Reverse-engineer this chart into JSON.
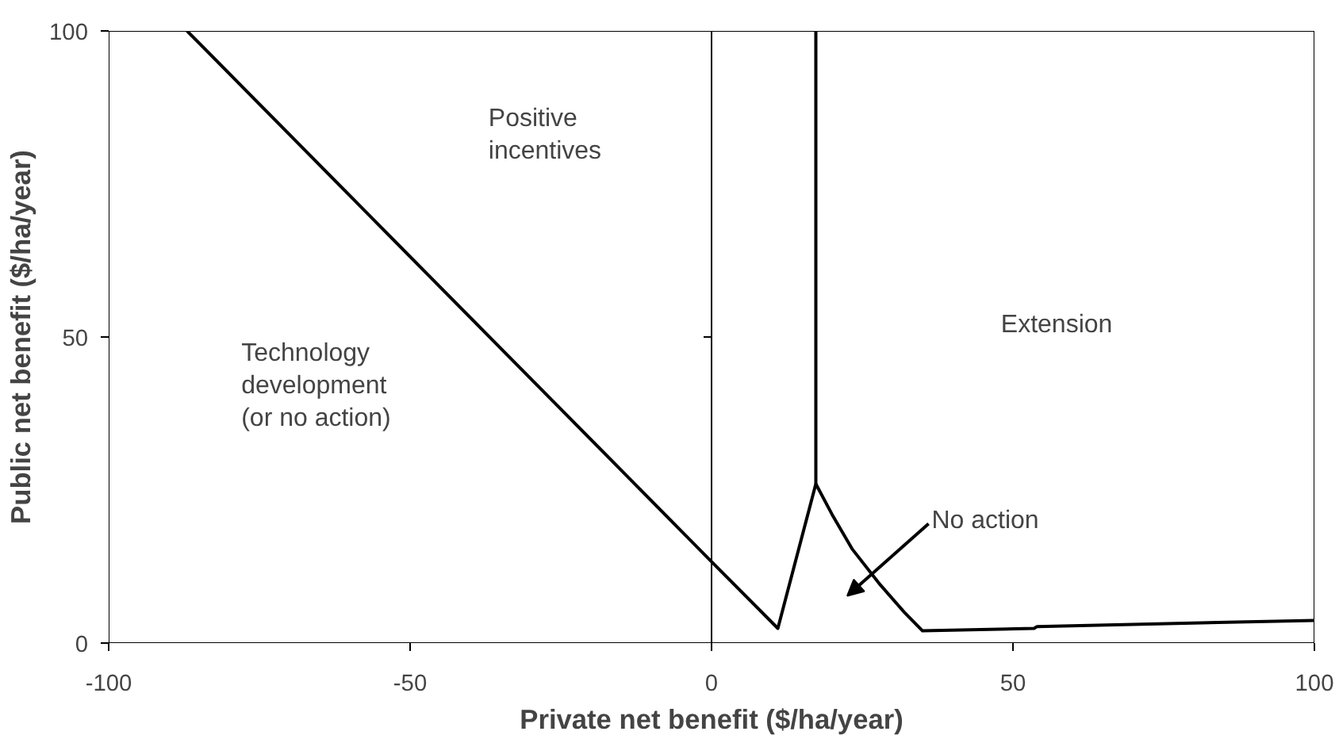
{
  "chart_data": {
    "type": "line",
    "xlabel": "Private net benefit ($/ha/year)",
    "ylabel": "Public net benefit ($/ha/year)",
    "series": [
      {
        "color": "#000000",
        "x": [
          -87,
          0,
          11,
          17.3,
          20,
          23.3,
          28,
          32,
          35,
          53.5,
          54,
          100
        ],
        "values": [
          100,
          13.3,
          2.4,
          26,
          21,
          15.4,
          9.5,
          5,
          2,
          2.4,
          2.7,
          3.7
        ]
      },
      {
        "color": "#000000",
        "x": [
          17.3,
          17.3
        ],
        "values": [
          26,
          100
        ]
      }
    ],
    "annotations": [
      {
        "text": "Technology\ndevelopment\n(or no action)"
      },
      {
        "text": "Positive\nincentives"
      },
      {
        "text": "Extension"
      },
      "No action"
    ],
    "xlim": [
      -100,
      100
    ],
    "ylim": [
      0,
      100
    ],
    "xticks": [
      -100,
      -50,
      0,
      50,
      100
    ],
    "yticks": [
      0,
      50,
      100
    ],
    "marker": "none",
    "line_style": "solid"
  }
}
